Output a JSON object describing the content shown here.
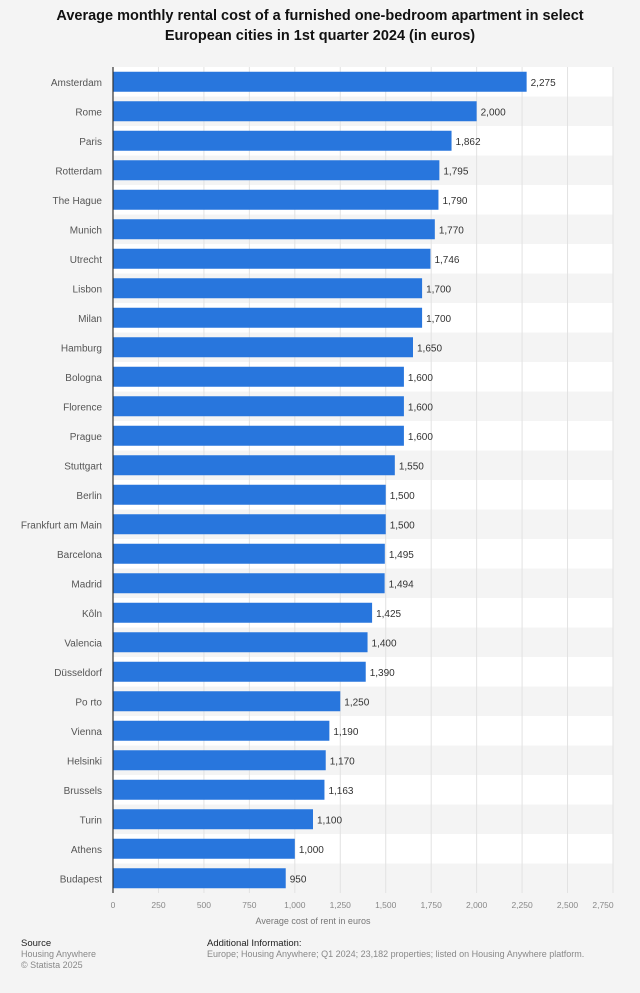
{
  "chart_data": {
    "type": "bar",
    "orientation": "horizontal",
    "title": "Average monthly rental cost of a furnished one-bedroom apartment in select European cities in 1st quarter 2024 (in euros)",
    "xlabel": "Average cost of rent in euros",
    "ylabel": "",
    "xlim": [
      0,
      2750
    ],
    "ticks": [
      "0",
      "250",
      "500",
      "750",
      "1,000",
      "1,250",
      "1,500",
      "1,750",
      "2,000",
      "2,250",
      "2,500",
      "2,750"
    ],
    "tick_values": [
      0,
      250,
      500,
      750,
      1000,
      1250,
      1500,
      1750,
      2000,
      2250,
      2500,
      2750
    ],
    "grid": true,
    "bar_color": "#2876dd",
    "categories": [
      "Amsterdam",
      "Rome",
      "Paris",
      "Rotterdam",
      "The Hague",
      "Munich",
      "Utrecht",
      "Lisbon",
      "Milan",
      "Hamburg",
      "Bologna",
      "Florence",
      "Prague",
      "Stuttgart",
      "Berlin",
      "Frankfurt am Main",
      "Barcelona",
      "Madrid",
      "Kôln",
      "Valencia",
      "Düsseldorf",
      "Po rto",
      "Vienna",
      "Helsinki",
      "Brussels",
      "Turin",
      "Athens",
      "Budapest"
    ],
    "values": [
      2275,
      2000,
      1862,
      1795,
      1790,
      1770,
      1746,
      1700,
      1700,
      1650,
      1600,
      1600,
      1600,
      1550,
      1500,
      1500,
      1495,
      1494,
      1425,
      1400,
      1390,
      1250,
      1190,
      1170,
      1163,
      1100,
      1000,
      950
    ],
    "labels": [
      "2,275",
      "2,000",
      "1,862",
      "1,795",
      "1,790",
      "1,770",
      "1,746",
      "1,700",
      "1,700",
      "1,650",
      "1,600",
      "1,600",
      "1,600",
      "1,550",
      "1,500",
      "1,500",
      "1,495",
      "1,494",
      "1,425",
      "1,400",
      "1,390",
      "1,250",
      "1,190",
      "1,170",
      "1,163",
      "1,100",
      "1,000",
      "950"
    ]
  },
  "footer": {
    "source_heading": "Source",
    "source": "Housing Anywhere",
    "copyright": "© Statista 2025",
    "info_heading": "Additional Information:",
    "info": "Europe; Housing Anywhere; Q1 2024; 23,182 properties; listed on Housing Anywhere platform."
  }
}
